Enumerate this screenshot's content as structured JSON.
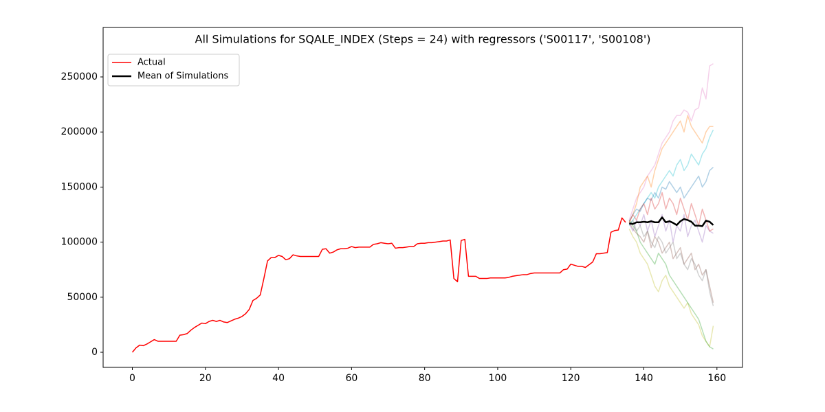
{
  "chart_data": {
    "type": "line",
    "title": "All Simulations for SQALE_INDEX (Steps = 24) with regressors ('S00117', 'S00108')",
    "xlim": [
      -8,
      167
    ],
    "ylim": [
      -13700,
      294900
    ],
    "xticks": [
      0,
      20,
      40,
      60,
      80,
      100,
      120,
      140,
      160
    ],
    "yticks": [
      0,
      50000,
      100000,
      150000,
      200000,
      250000
    ],
    "legend": "upper left",
    "grid": false,
    "series": [
      {
        "name": "Actual",
        "color": "#ff0000",
        "linewidth": 1.5,
        "opacity": 1,
        "x": [
          0,
          1,
          2,
          3,
          4,
          5,
          6,
          7,
          8,
          9,
          10,
          11,
          12,
          13,
          14,
          15,
          16,
          17,
          18,
          19,
          20,
          21,
          22,
          23,
          24,
          25,
          26,
          27,
          28,
          29,
          30,
          31,
          32,
          33,
          34,
          35,
          36,
          37,
          38,
          39,
          40,
          41,
          42,
          43,
          44,
          45,
          46,
          47,
          48,
          49,
          50,
          51,
          52,
          53,
          54,
          55,
          56,
          57,
          58,
          59,
          60,
          61,
          62,
          63,
          64,
          65,
          66,
          67,
          68,
          69,
          70,
          71,
          72,
          73,
          74,
          75,
          76,
          77,
          78,
          79,
          80,
          81,
          82,
          83,
          84,
          85,
          86,
          87,
          88,
          89,
          90,
          91,
          92,
          93,
          94,
          95,
          96,
          97,
          98,
          99,
          100,
          101,
          102,
          103,
          104,
          105,
          106,
          107,
          108,
          109,
          110,
          111,
          112,
          113,
          114,
          115,
          116,
          117,
          118,
          119,
          120,
          121,
          122,
          123,
          124,
          125,
          126,
          127,
          128,
          129,
          130,
          131,
          132,
          133,
          134,
          135
        ],
        "values": [
          0,
          4000,
          6500,
          6000,
          7500,
          9500,
          11500,
          10000,
          10000,
          10000,
          10000,
          10000,
          10000,
          15500,
          16000,
          17000,
          20000,
          22500,
          24500,
          26500,
          26000,
          28000,
          29000,
          28000,
          29000,
          27500,
          27000,
          28500,
          30000,
          31000,
          32500,
          35000,
          39000,
          47000,
          49000,
          52000,
          67000,
          83000,
          86000,
          86000,
          88000,
          87000,
          84000,
          85000,
          88500,
          87500,
          87000,
          87000,
          87000,
          87000,
          87000,
          87000,
          93500,
          94000,
          90000,
          91000,
          93000,
          94000,
          94000,
          94500,
          96000,
          95000,
          95500,
          95500,
          95500,
          95500,
          98000,
          98500,
          99500,
          99000,
          98500,
          99000,
          94500,
          95000,
          95000,
          95500,
          96000,
          96000,
          98500,
          99000,
          99000,
          99500,
          99500,
          100000,
          100500,
          101000,
          101000,
          102000,
          67000,
          64000,
          101500,
          102500,
          69000,
          69000,
          69000,
          67000,
          67000,
          67000,
          67500,
          67500,
          67500,
          67500,
          67500,
          68000,
          69000,
          69500,
          70000,
          70500,
          70500,
          71500,
          72000,
          72000,
          72000,
          72000,
          72000,
          72000,
          72000,
          72000,
          75000,
          75500,
          80000,
          79000,
          78000,
          78000,
          77000,
          79500,
          82000,
          89500,
          89500,
          90000,
          90500,
          109000,
          110500,
          111000,
          122000,
          118000
        ]
      },
      {
        "color": "#e377c2",
        "linewidth": 1.5,
        "opacity": 0.35,
        "x": [
          136,
          137,
          138,
          139,
          140,
          141,
          142,
          143,
          144,
          145,
          146,
          147,
          148,
          149,
          150,
          151,
          152,
          153,
          154,
          155,
          156,
          157,
          158,
          159
        ],
        "values": [
          120000,
          130000,
          140000,
          145000,
          150000,
          160000,
          165000,
          170000,
          180000,
          190000,
          195000,
          200000,
          210000,
          215000,
          215000,
          220000,
          218000,
          210000,
          220000,
          222000,
          240000,
          230000,
          260000,
          262000
        ]
      },
      {
        "color": "#ff7f0e",
        "linewidth": 1.5,
        "opacity": 0.35,
        "x": [
          136,
          137,
          138,
          139,
          140,
          141,
          142,
          143,
          144,
          145,
          146,
          147,
          148,
          149,
          150,
          151,
          152,
          153,
          154,
          155,
          156,
          157,
          158,
          159
        ],
        "values": [
          118000,
          125000,
          135000,
          150000,
          155000,
          160000,
          150000,
          165000,
          175000,
          185000,
          190000,
          195000,
          200000,
          205000,
          210000,
          200000,
          215000,
          205000,
          200000,
          195000,
          190000,
          200000,
          205000,
          205000
        ]
      },
      {
        "color": "#17becf",
        "linewidth": 1.5,
        "opacity": 0.35,
        "x": [
          136,
          137,
          138,
          139,
          140,
          141,
          142,
          143,
          144,
          145,
          146,
          147,
          148,
          149,
          150,
          151,
          152,
          153,
          154,
          155,
          156,
          157,
          158,
          159
        ],
        "values": [
          115000,
          120000,
          125000,
          130000,
          135000,
          140000,
          145000,
          140000,
          150000,
          155000,
          160000,
          165000,
          160000,
          170000,
          175000,
          165000,
          170000,
          180000,
          175000,
          170000,
          180000,
          185000,
          195000,
          202000
        ]
      },
      {
        "color": "#bcbd22",
        "linewidth": 1.5,
        "opacity": 0.35,
        "x": [
          136,
          137,
          138,
          139,
          140,
          141,
          142,
          143,
          144,
          145,
          146,
          147,
          148,
          149,
          150,
          151,
          152,
          153,
          154,
          155,
          156,
          157,
          158,
          159
        ],
        "values": [
          112000,
          105000,
          100000,
          90000,
          85000,
          80000,
          70000,
          60000,
          55000,
          65000,
          70000,
          60000,
          55000,
          50000,
          45000,
          40000,
          45000,
          35000,
          30000,
          25000,
          15000,
          10000,
          5000,
          24000
        ]
      },
      {
        "color": "#2ca02c",
        "linewidth": 1.5,
        "opacity": 0.35,
        "x": [
          136,
          137,
          138,
          139,
          140,
          141,
          142,
          143,
          144,
          145,
          146,
          147,
          148,
          149,
          150,
          151,
          152,
          153,
          154,
          155,
          156,
          157,
          158,
          159
        ],
        "values": [
          120000,
          115000,
          110000,
          100000,
          95000,
          90000,
          85000,
          80000,
          90000,
          85000,
          80000,
          70000,
          65000,
          60000,
          55000,
          50000,
          45000,
          40000,
          35000,
          30000,
          20000,
          10000,
          5000,
          3000
        ]
      },
      {
        "color": "#8c564b",
        "linewidth": 1.5,
        "opacity": 0.35,
        "x": [
          136,
          137,
          138,
          139,
          140,
          141,
          142,
          143,
          144,
          145,
          146,
          147,
          148,
          149,
          150,
          151,
          152,
          153,
          154,
          155,
          156,
          157,
          158,
          159
        ],
        "values": [
          118000,
          112000,
          108000,
          105000,
          100000,
          110000,
          95000,
          105000,
          100000,
          90000,
          95000,
          100000,
          85000,
          90000,
          95000,
          80000,
          85000,
          90000,
          75000,
          80000,
          70000,
          75000,
          60000,
          45000
        ]
      },
      {
        "color": "#1f77b4",
        "linewidth": 1.5,
        "opacity": 0.35,
        "x": [
          136,
          137,
          138,
          139,
          140,
          141,
          142,
          143,
          144,
          145,
          146,
          147,
          148,
          149,
          150,
          151,
          152,
          153,
          154,
          155,
          156,
          157,
          158,
          159
        ],
        "values": [
          119000,
          125000,
          130000,
          128000,
          135000,
          140000,
          138000,
          145000,
          140000,
          150000,
          148000,
          155000,
          150000,
          145000,
          150000,
          140000,
          145000,
          150000,
          155000,
          160000,
          150000,
          155000,
          165000,
          168000
        ]
      },
      {
        "color": "#9467bd",
        "linewidth": 1.5,
        "opacity": 0.35,
        "x": [
          136,
          137,
          138,
          139,
          140,
          141,
          142,
          143,
          144,
          145,
          146,
          147,
          148,
          149,
          150,
          151,
          152,
          153,
          154,
          155,
          156,
          157,
          158,
          159
        ],
        "values": [
          117000,
          110000,
          120000,
          115000,
          125000,
          110000,
          120000,
          105000,
          115000,
          125000,
          110000,
          120000,
          100000,
          115000,
          110000,
          125000,
          105000,
          115000,
          120000,
          110000,
          100000,
          115000,
          110000,
          108000
        ]
      },
      {
        "color": "#7f7f7f",
        "linewidth": 1.5,
        "opacity": 0.35,
        "x": [
          136,
          137,
          138,
          139,
          140,
          141,
          142,
          143,
          144,
          145,
          146,
          147,
          148,
          149,
          150,
          151,
          152,
          153,
          154,
          155,
          156,
          157,
          158,
          159
        ],
        "values": [
          116000,
          120000,
          110000,
          115000,
          105000,
          110000,
          100000,
          95000,
          105000,
          100000,
          90000,
          95000,
          100000,
          85000,
          90000,
          80000,
          75000,
          85000,
          80000,
          70000,
          65000,
          75000,
          55000,
          42000
        ]
      },
      {
        "color": "#d62728",
        "linewidth": 1.5,
        "opacity": 0.35,
        "x": [
          136,
          137,
          138,
          139,
          140,
          141,
          142,
          143,
          144,
          145,
          146,
          147,
          148,
          149,
          150,
          151,
          152,
          153,
          154,
          155,
          156,
          157,
          158,
          159
        ],
        "values": [
          118000,
          125000,
          120000,
          130000,
          135000,
          125000,
          140000,
          130000,
          135000,
          145000,
          130000,
          140000,
          135000,
          125000,
          140000,
          130000,
          120000,
          135000,
          125000,
          115000,
          130000,
          120000,
          110000,
          112000
        ]
      },
      {
        "name": "Mean of Simulations",
        "color": "#000000",
        "linewidth": 2.5,
        "opacity": 1,
        "x": [
          136,
          137,
          138,
          139,
          140,
          141,
          142,
          143,
          144,
          145,
          146,
          147,
          148,
          149,
          150,
          151,
          152,
          153,
          154,
          155,
          156,
          157,
          158,
          159
        ],
        "values": [
          117000,
          116500,
          118000,
          118000,
          118500,
          118000,
          119000,
          118000,
          118000,
          122500,
          118000,
          119000,
          117500,
          115500,
          119000,
          121000,
          120000,
          118500,
          115000,
          115000,
          114500,
          119500,
          118500,
          115500
        ]
      }
    ]
  }
}
